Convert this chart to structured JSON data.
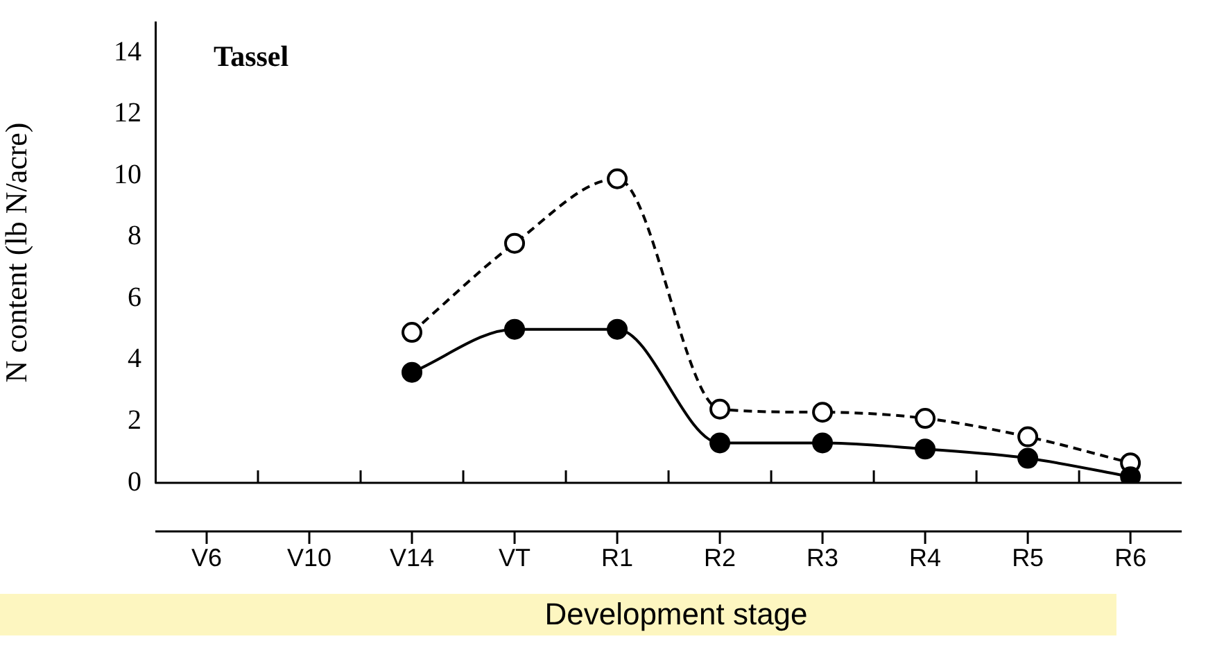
{
  "chart_data": {
    "type": "line",
    "title": "Tassel",
    "xlabel": "Development stage",
    "ylabel": "N content (lb N/acre)",
    "categories": [
      "V6",
      "V10",
      "V14",
      "VT",
      "R1",
      "R2",
      "R3",
      "R4",
      "R5",
      "R6"
    ],
    "series": [
      {
        "color": "#000000",
        "line_style": "dashed",
        "values": [
          null,
          null,
          4.9,
          7.8,
          9.9,
          2.4,
          2.3,
          2.1,
          1.5,
          0.65
        ]
      },
      {
        "color": "#000000",
        "line_style": "solid",
        "values": [
          null,
          null,
          3.6,
          5.0,
          5.0,
          1.3,
          1.3,
          1.1,
          0.8,
          0.2
        ]
      }
    ],
    "ylim": [
      0,
      15
    ],
    "yticks": [
      0,
      2,
      4,
      6,
      8,
      10,
      12,
      14
    ],
    "marker": "circle"
  }
}
